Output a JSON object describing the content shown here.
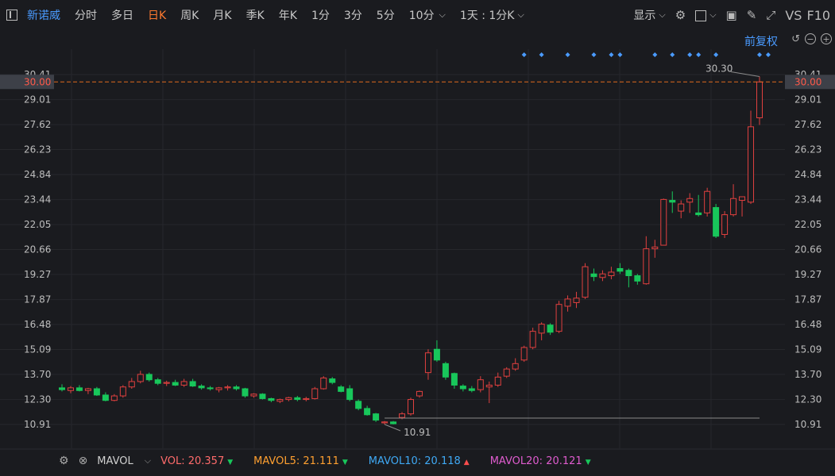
{
  "toolbar": {
    "stock_name": "新诺威",
    "periods": [
      "分时",
      "多日",
      "日K",
      "周K",
      "月K",
      "季K",
      "年K",
      "1分",
      "3分",
      "5分",
      "10分"
    ],
    "active_period": "日K",
    "chevron": "chevron-down-icon",
    "multi_period": "1天 : 1分K",
    "display": "显示",
    "vs": "VS",
    "f10": "F10"
  },
  "adjust": {
    "label": "前复权"
  },
  "legend": {
    "indicator": "MAVOL",
    "vol": {
      "label": "VOL:",
      "value": "20.357",
      "trend": "down",
      "color": "#ff6b6b"
    },
    "mavol5": {
      "label": "MAVOL5:",
      "value": "21.111",
      "trend": "down",
      "color": "#ffa030"
    },
    "mavol10": {
      "label": "MAVOL10:",
      "value": "20.118",
      "trend": "up",
      "color": "#3fa9f5"
    },
    "mavol20": {
      "label": "MAVOL20:",
      "value": "20.121",
      "trend": "down",
      "color": "#e05ccf"
    }
  },
  "chart_data": {
    "type": "candlestick",
    "y_ticks": [
      "30.41",
      "30.00",
      "29.01",
      "27.62",
      "26.23",
      "24.84",
      "23.44",
      "22.05",
      "20.66",
      "19.27",
      "17.87",
      "16.48",
      "15.09",
      "13.70",
      "12.30",
      "10.91"
    ],
    "ylim": [
      10.91,
      30.41
    ],
    "current_price": "30.00",
    "high_label": "30.30",
    "low_label": "10.91",
    "colors": {
      "up": "#e0403f",
      "down": "#18c75b",
      "crosshair": "#e06a1f",
      "marker": "#4a9bff"
    },
    "candles": [
      {
        "o": 12.95,
        "h": 13.15,
        "l": 12.75,
        "c": 12.85
      },
      {
        "o": 12.8,
        "h": 13.05,
        "l": 12.65,
        "c": 12.95
      },
      {
        "o": 12.95,
        "h": 13.1,
        "l": 12.75,
        "c": 12.8
      },
      {
        "o": 12.8,
        "h": 12.95,
        "l": 12.6,
        "c": 12.9
      },
      {
        "o": 12.9,
        "h": 13.0,
        "l": 12.5,
        "c": 12.55
      },
      {
        "o": 12.55,
        "h": 12.7,
        "l": 12.2,
        "c": 12.25
      },
      {
        "o": 12.25,
        "h": 12.6,
        "l": 12.2,
        "c": 12.5
      },
      {
        "o": 12.5,
        "h": 13.1,
        "l": 12.4,
        "c": 13.0
      },
      {
        "o": 13.0,
        "h": 13.5,
        "l": 12.9,
        "c": 13.3
      },
      {
        "o": 13.3,
        "h": 13.9,
        "l": 13.2,
        "c": 13.7
      },
      {
        "o": 13.7,
        "h": 13.8,
        "l": 13.3,
        "c": 13.4
      },
      {
        "o": 13.4,
        "h": 13.5,
        "l": 13.1,
        "c": 13.2
      },
      {
        "o": 13.2,
        "h": 13.35,
        "l": 13.05,
        "c": 13.25
      },
      {
        "o": 13.25,
        "h": 13.4,
        "l": 13.05,
        "c": 13.1
      },
      {
        "o": 13.1,
        "h": 13.45,
        "l": 13.0,
        "c": 13.3
      },
      {
        "o": 13.3,
        "h": 13.45,
        "l": 13.0,
        "c": 13.05
      },
      {
        "o": 13.05,
        "h": 13.15,
        "l": 12.85,
        "c": 12.95
      },
      {
        "o": 12.95,
        "h": 13.05,
        "l": 12.8,
        "c": 12.9
      },
      {
        "o": 12.85,
        "h": 13.0,
        "l": 12.7,
        "c": 12.95
      },
      {
        "o": 12.95,
        "h": 13.1,
        "l": 12.8,
        "c": 13.0
      },
      {
        "o": 13.0,
        "h": 13.1,
        "l": 12.8,
        "c": 12.9
      },
      {
        "o": 12.9,
        "h": 12.95,
        "l": 12.4,
        "c": 12.5
      },
      {
        "o": 12.5,
        "h": 12.65,
        "l": 12.4,
        "c": 12.6
      },
      {
        "o": 12.6,
        "h": 12.65,
        "l": 12.3,
        "c": 12.35
      },
      {
        "o": 12.35,
        "h": 12.4,
        "l": 12.15,
        "c": 12.25
      },
      {
        "o": 12.2,
        "h": 12.35,
        "l": 12.1,
        "c": 12.3
      },
      {
        "o": 12.3,
        "h": 12.45,
        "l": 12.2,
        "c": 12.4
      },
      {
        "o": 12.4,
        "h": 12.5,
        "l": 12.2,
        "c": 12.3
      },
      {
        "o": 12.3,
        "h": 12.45,
        "l": 12.2,
        "c": 12.35
      },
      {
        "o": 12.35,
        "h": 13.0,
        "l": 12.3,
        "c": 12.9
      },
      {
        "o": 12.9,
        "h": 13.6,
        "l": 12.85,
        "c": 13.5
      },
      {
        "o": 13.45,
        "h": 13.55,
        "l": 13.15,
        "c": 13.25
      },
      {
        "o": 13.0,
        "h": 13.1,
        "l": 12.7,
        "c": 12.75
      },
      {
        "o": 12.9,
        "h": 13.1,
        "l": 12.2,
        "c": 12.3
      },
      {
        "o": 12.2,
        "h": 12.3,
        "l": 11.7,
        "c": 11.8
      },
      {
        "o": 11.8,
        "h": 11.95,
        "l": 11.4,
        "c": 11.45
      },
      {
        "o": 11.5,
        "h": 11.55,
        "l": 11.05,
        "c": 11.15
      },
      {
        "o": 11.0,
        "h": 11.1,
        "l": 10.91,
        "c": 11.05
      },
      {
        "o": 11.05,
        "h": 11.1,
        "l": 10.91,
        "c": 10.95
      },
      {
        "o": 11.3,
        "h": 11.6,
        "l": 11.2,
        "c": 11.5
      },
      {
        "o": 11.5,
        "h": 12.4,
        "l": 11.4,
        "c": 12.3
      },
      {
        "o": 12.5,
        "h": 12.8,
        "l": 12.4,
        "c": 12.75
      },
      {
        "o": 13.8,
        "h": 15.1,
        "l": 13.4,
        "c": 14.9
      },
      {
        "o": 15.1,
        "h": 15.6,
        "l": 14.4,
        "c": 14.5
      },
      {
        "o": 14.3,
        "h": 14.4,
        "l": 13.4,
        "c": 13.55
      },
      {
        "o": 13.75,
        "h": 13.8,
        "l": 12.9,
        "c": 13.1
      },
      {
        "o": 13.05,
        "h": 13.15,
        "l": 12.75,
        "c": 12.9
      },
      {
        "o": 12.9,
        "h": 13.05,
        "l": 12.7,
        "c": 12.8
      },
      {
        "o": 12.85,
        "h": 13.6,
        "l": 12.7,
        "c": 13.4
      },
      {
        "o": 13.0,
        "h": 13.3,
        "l": 12.1,
        "c": 13.1
      },
      {
        "o": 13.1,
        "h": 13.8,
        "l": 13.0,
        "c": 13.55
      },
      {
        "o": 13.6,
        "h": 14.1,
        "l": 13.5,
        "c": 14.0
      },
      {
        "o": 14.0,
        "h": 14.6,
        "l": 13.9,
        "c": 14.3
      },
      {
        "o": 14.5,
        "h": 15.3,
        "l": 14.4,
        "c": 15.2
      },
      {
        "o": 15.2,
        "h": 16.3,
        "l": 15.1,
        "c": 16.1
      },
      {
        "o": 16.0,
        "h": 16.6,
        "l": 15.6,
        "c": 16.5
      },
      {
        "o": 16.45,
        "h": 16.55,
        "l": 15.9,
        "c": 16.05
      },
      {
        "o": 16.1,
        "h": 17.8,
        "l": 16.0,
        "c": 17.6
      },
      {
        "o": 17.5,
        "h": 18.1,
        "l": 17.2,
        "c": 17.9
      },
      {
        "o": 17.7,
        "h": 18.3,
        "l": 17.4,
        "c": 17.95
      },
      {
        "o": 18.0,
        "h": 19.9,
        "l": 17.9,
        "c": 19.7
      },
      {
        "o": 19.3,
        "h": 19.6,
        "l": 18.9,
        "c": 19.15
      },
      {
        "o": 19.1,
        "h": 19.5,
        "l": 18.9,
        "c": 19.3
      },
      {
        "o": 19.2,
        "h": 19.7,
        "l": 19.0,
        "c": 19.4
      },
      {
        "o": 19.6,
        "h": 19.9,
        "l": 19.3,
        "c": 19.45
      },
      {
        "o": 19.5,
        "h": 19.6,
        "l": 18.55,
        "c": 19.2
      },
      {
        "o": 19.2,
        "h": 19.3,
        "l": 18.7,
        "c": 18.9
      },
      {
        "o": 18.75,
        "h": 21.4,
        "l": 18.7,
        "c": 20.7
      },
      {
        "o": 20.7,
        "h": 21.2,
        "l": 20.2,
        "c": 20.8
      },
      {
        "o": 20.9,
        "h": 23.5,
        "l": 20.9,
        "c": 23.45
      },
      {
        "o": 23.4,
        "h": 23.9,
        "l": 22.7,
        "c": 23.3
      },
      {
        "o": 22.8,
        "h": 23.4,
        "l": 22.4,
        "c": 23.2
      },
      {
        "o": 23.3,
        "h": 23.8,
        "l": 22.7,
        "c": 23.5
      },
      {
        "o": 22.7,
        "h": 23.7,
        "l": 22.5,
        "c": 22.6
      },
      {
        "o": 22.7,
        "h": 24.1,
        "l": 22.5,
        "c": 23.9
      },
      {
        "o": 23.0,
        "h": 23.2,
        "l": 21.3,
        "c": 21.4
      },
      {
        "o": 21.5,
        "h": 22.8,
        "l": 21.3,
        "c": 22.6
      },
      {
        "o": 22.6,
        "h": 24.3,
        "l": 22.5,
        "c": 23.5
      },
      {
        "o": 23.4,
        "h": 23.6,
        "l": 22.5,
        "c": 23.6
      },
      {
        "o": 23.3,
        "h": 28.4,
        "l": 23.2,
        "c": 27.5
      },
      {
        "o": 28.0,
        "h": 30.3,
        "l": 27.6,
        "c": 30.0
      }
    ],
    "event_marker_candles": [
      53,
      55,
      58,
      61,
      63,
      64,
      68,
      70,
      72,
      73,
      75,
      80,
      81
    ]
  }
}
